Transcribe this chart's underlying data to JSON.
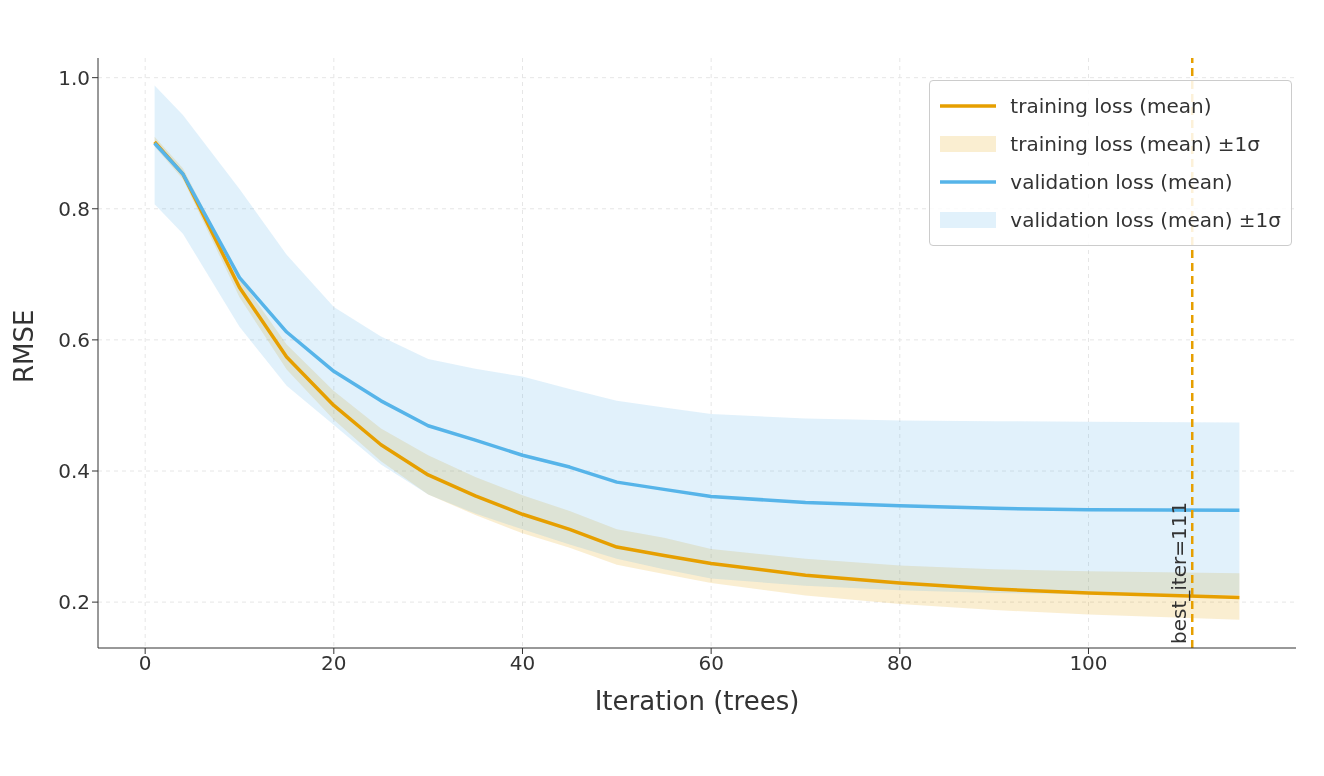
{
  "chart_data": {
    "type": "line",
    "xlabel": "Iteration (trees)",
    "ylabel": "RMSE",
    "x": [
      1,
      4,
      10,
      15,
      20,
      25,
      30,
      35,
      40,
      45,
      50,
      55,
      60,
      70,
      80,
      90,
      100,
      116
    ],
    "series": [
      {
        "name": "training loss (mean)",
        "color": "#e69f00",
        "values": [
          0.902,
          0.853,
          0.68,
          0.574,
          0.5,
          0.44,
          0.394,
          0.362,
          0.334,
          0.311,
          0.284,
          0.271,
          0.259,
          0.241,
          0.229,
          0.22,
          0.214,
          0.207
        ],
        "lower": [
          0.895,
          0.845,
          0.665,
          0.555,
          0.478,
          0.415,
          0.364,
          0.333,
          0.305,
          0.283,
          0.257,
          0.243,
          0.229,
          0.21,
          0.197,
          0.188,
          0.181,
          0.173
        ],
        "upper": [
          0.91,
          0.862,
          0.695,
          0.593,
          0.522,
          0.465,
          0.424,
          0.391,
          0.363,
          0.339,
          0.311,
          0.298,
          0.281,
          0.266,
          0.256,
          0.25,
          0.247,
          0.244
        ]
      },
      {
        "name": "validation loss (mean)",
        "color": "#56b4e9",
        "values": [
          0.9,
          0.853,
          0.695,
          0.612,
          0.552,
          0.507,
          0.469,
          0.447,
          0.424,
          0.406,
          0.383,
          0.372,
          0.361,
          0.352,
          0.347,
          0.343,
          0.341,
          0.34
        ],
        "lower": [
          0.807,
          0.762,
          0.62,
          0.53,
          0.47,
          0.41,
          0.364,
          0.335,
          0.311,
          0.288,
          0.266,
          0.25,
          0.236,
          0.225,
          0.218,
          0.214,
          0.212,
          0.211
        ],
        "upper": [
          0.988,
          0.943,
          0.83,
          0.73,
          0.65,
          0.605,
          0.571,
          0.556,
          0.544,
          0.525,
          0.507,
          0.497,
          0.487,
          0.48,
          0.477,
          0.476,
          0.475,
          0.474
        ]
      }
    ],
    "annotations": [
      "training loss (mean) ±1σ",
      "validation loss (mean) ±1σ"
    ],
    "xlim": [
      -5,
      122
    ],
    "xticks": [
      0,
      20,
      40,
      60,
      80,
      100
    ],
    "ylim": [
      0.13,
      1.03
    ],
    "yticks": [
      0.2,
      0.4,
      0.6,
      0.8,
      {
        "value": 1,
        "label": "1.0"
      }
    ],
    "ref_lines": [
      {
        "axis": "x",
        "value": 111,
        "label": "best_iter=111",
        "color": "#e69f00",
        "line_style": "dashed"
      }
    ],
    "grid": true,
    "legend": "top right",
    "marker": "none",
    "line_style": "solid"
  }
}
